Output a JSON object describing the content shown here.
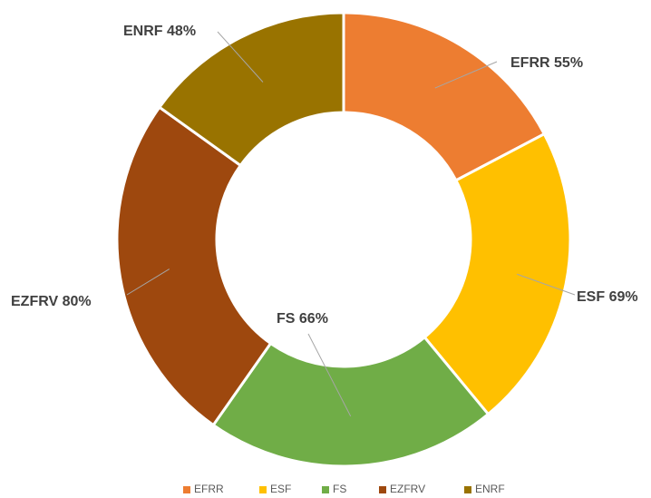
{
  "chart_data": {
    "type": "donut",
    "categories": [
      "EFRR",
      "ESF",
      "FS",
      "EZFRV",
      "ENRF"
    ],
    "values": [
      55,
      69,
      66,
      80,
      48
    ],
    "value_labels": [
      "55%",
      "69%",
      "66%",
      "80%",
      "48%"
    ],
    "colors": [
      "#ed7d31",
      "#ffc000",
      "#70ad47",
      "#9e480e",
      "#997300"
    ],
    "legend": "bottom"
  }
}
